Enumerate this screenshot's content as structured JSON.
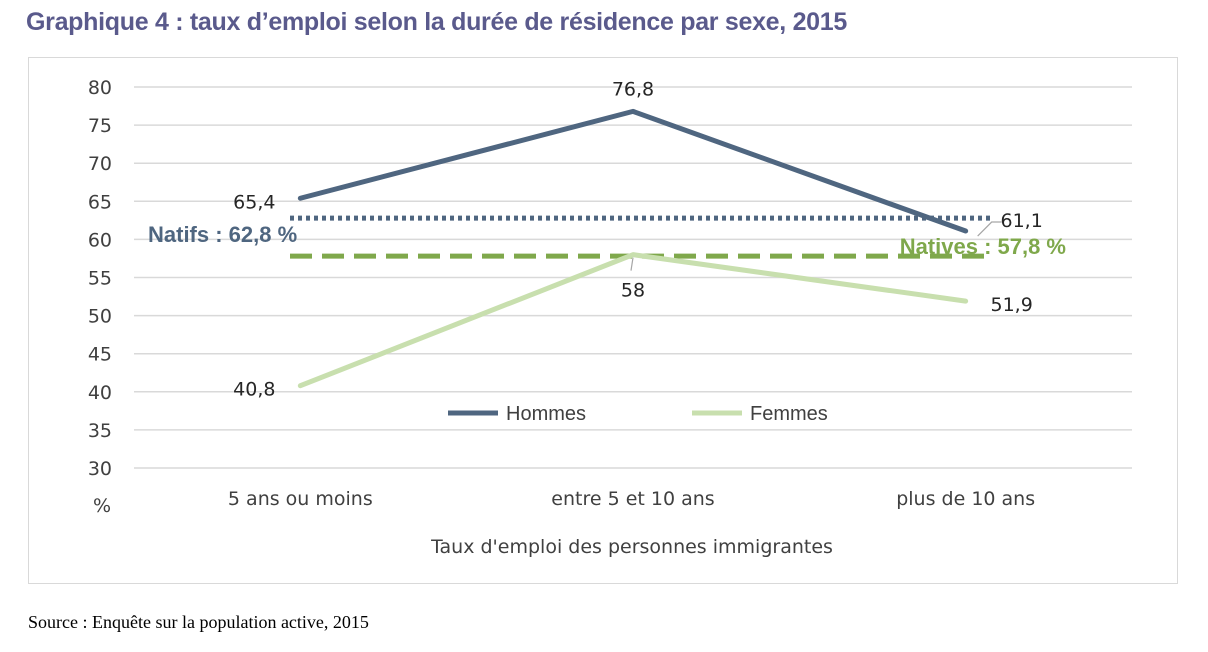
{
  "title": "Graphique 4 : taux d’emploi selon la durée de résidence par sexe, 2015",
  "source": "Source : Enquête sur la population active, 2015",
  "chart_data": {
    "type": "line",
    "categories": [
      "5 ans ou moins",
      "entre 5 et 10 ans",
      "plus de 10 ans"
    ],
    "xlabel": "Taux d'emploi des personnes immigrantes",
    "ylabel": "%",
    "ylim": [
      30,
      80
    ],
    "yticks": [
      30,
      35,
      40,
      45,
      50,
      55,
      60,
      65,
      70,
      75,
      80
    ],
    "grid": true,
    "legend_position": "center",
    "series": [
      {
        "name": "Hommes",
        "values": [
          65.4,
          76.8,
          61.1
        ],
        "labels": [
          "65,4",
          "76,8",
          "61,1"
        ],
        "color": "#4f6680"
      },
      {
        "name": "Femmes",
        "values": [
          40.8,
          58,
          51.9
        ],
        "labels": [
          "40,8",
          "58",
          "51,9"
        ],
        "color": "#c8dfae"
      }
    ],
    "reference_lines": [
      {
        "label": "Natifs : 62,8 %",
        "value": 62.8,
        "style": "dotted",
        "color": "#4f6680"
      },
      {
        "label": "Natives : 57,8 %",
        "value": 57.8,
        "style": "dashed",
        "color": "#7fa84b"
      }
    ]
  }
}
